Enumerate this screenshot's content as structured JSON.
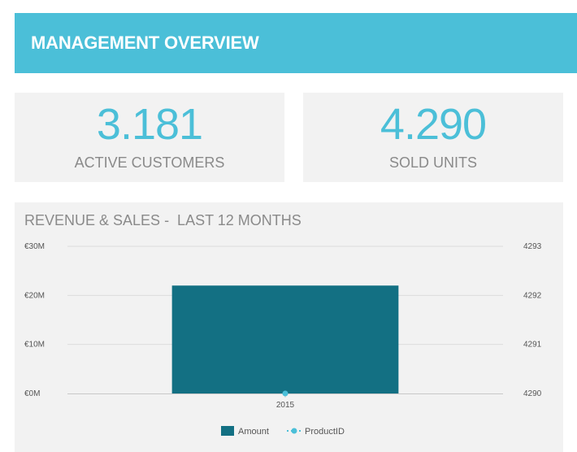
{
  "header": {
    "title": "MANAGEMENT OVERVIEW"
  },
  "kpis": [
    {
      "value": "3.181",
      "label": "ACTIVE CUSTOMERS"
    },
    {
      "value": "4.290",
      "label": "SOLD UNITS"
    }
  ],
  "colors": {
    "accent": "#4bbfd8",
    "bar": "#137083",
    "panel": "#f2f2f2"
  },
  "chart_data": {
    "type": "bar",
    "title": "REVENUE & SALES -  LAST 12 MONTHS",
    "categories": [
      "2015"
    ],
    "series": [
      {
        "name": "Amount",
        "type": "bar",
        "axis": "left",
        "values": [
          22000000
        ]
      },
      {
        "name": "ProductID",
        "type": "line",
        "axis": "right",
        "values": [
          4290
        ]
      }
    ],
    "y_left": {
      "ylim": [
        0,
        30000000
      ],
      "ticks": [
        0,
        10000000,
        20000000,
        30000000
      ],
      "tick_labels": [
        "€0M",
        "€10M",
        "€20M",
        "€30M"
      ]
    },
    "y_right": {
      "ylim": [
        4290,
        4293
      ],
      "ticks": [
        4290,
        4291,
        4292,
        4293
      ],
      "tick_labels": [
        "4290",
        "4291",
        "4292",
        "4293"
      ]
    },
    "grid": true,
    "legend": "bottom-center"
  }
}
